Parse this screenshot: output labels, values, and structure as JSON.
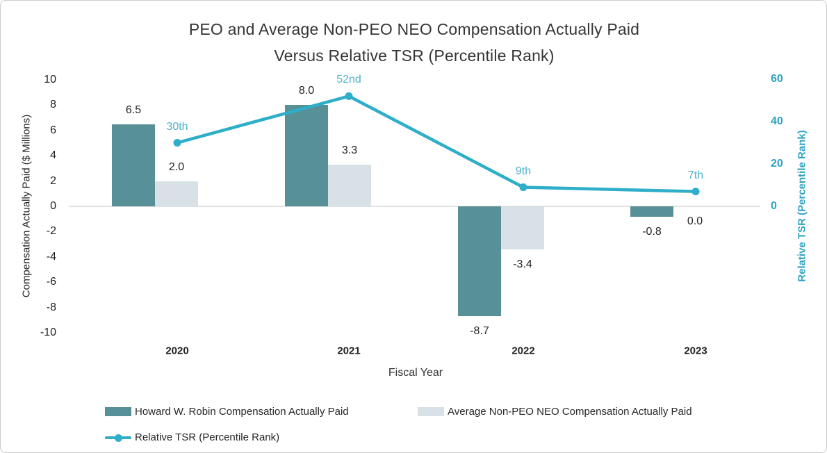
{
  "title": {
    "line1": "PEO and Average Non-PEO NEO Compensation Actually Paid",
    "line2": "Versus Relative TSR (Percentile Rank)"
  },
  "chart_data": {
    "type": "bar+line combo",
    "categories": [
      "2020",
      "2021",
      "2022",
      "2023"
    ],
    "series": [
      {
        "name": "Howard W. Robin Compensation Actually Paid",
        "type": "bar",
        "axis": "left",
        "values": [
          6.5,
          8.0,
          -8.7,
          -0.8
        ],
        "labels": [
          "6.5",
          "8.0",
          "-8.7",
          "-0.8"
        ],
        "color": "#579097"
      },
      {
        "name": "Average Non-PEO NEO Compensation Actually Paid",
        "type": "bar",
        "axis": "left",
        "values": [
          2.0,
          3.3,
          -3.4,
          0.0
        ],
        "labels": [
          "2.0",
          "3.3",
          "-3.4",
          "0.0"
        ],
        "color": "#D8E1E6"
      },
      {
        "name": "Relative TSR (Percentile Rank)",
        "type": "line",
        "axis": "right",
        "values": [
          30,
          52,
          9,
          7
        ],
        "labels": [
          "30th",
          "52nd",
          "9th",
          "7th"
        ],
        "color": "#2EAEC8"
      }
    ],
    "left_axis": {
      "title": "Compensation Actually Paid ($ Millions)",
      "tick_labels": [
        "10",
        "8",
        "6",
        "4",
        "2",
        "0",
        "-2",
        "-4",
        "-6",
        "-8",
        "-10"
      ],
      "tick_values": [
        10,
        8,
        6,
        4,
        2,
        0,
        -2,
        -4,
        -6,
        -8,
        -10
      ],
      "range": [
        -10,
        10
      ]
    },
    "right_axis": {
      "title": "Relative TSR (Percentile Rank)",
      "tick_labels": [
        "60",
        "40",
        "20",
        "0"
      ],
      "tick_values": [
        60,
        40,
        20,
        0
      ],
      "range_shown": [
        0,
        60
      ]
    },
    "x_axis": {
      "title": "Fiscal Year"
    },
    "legend": [
      "Howard W. Robin Compensation Actually Paid",
      "Average Non-PEO NEO Compensation Actually Paid",
      "Relative TSR (Percentile Rank)"
    ],
    "grid": "zero-line-only",
    "legend_position": "bottom-left"
  },
  "colors": {
    "peo_bar": "#579097",
    "neo_bar": "#D8E1E6",
    "tsr_line": "#2EAEC8",
    "tsr_label_text": "#4FB2CF",
    "right_axis_text": "#2FA3C3",
    "zero_line": "#e2e2e2"
  }
}
